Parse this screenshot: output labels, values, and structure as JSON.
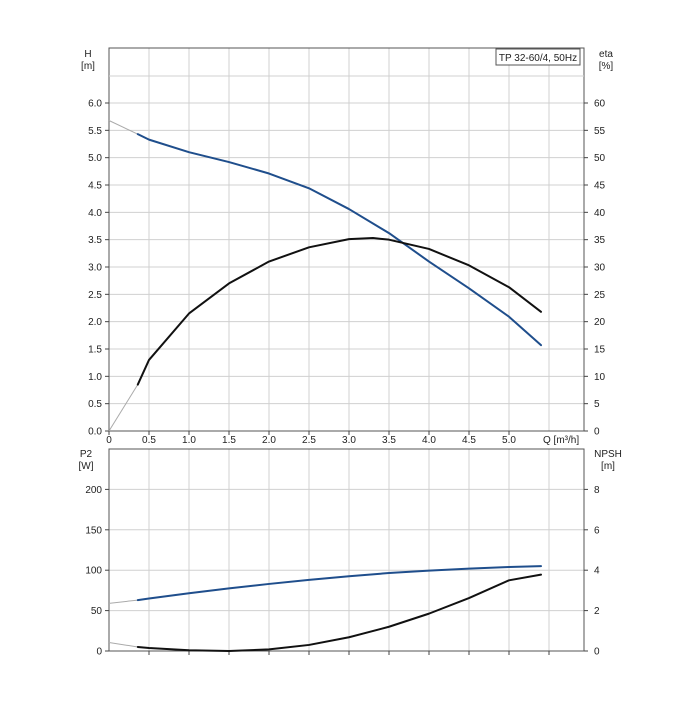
{
  "chart_data": [
    {
      "type": "line",
      "title": "TP 32-60/4, 50Hz",
      "xlabel": "Q [m³/h]",
      "x_ticks": [
        "0",
        "0.5",
        "1.0",
        "1.5",
        "2.0",
        "2.5",
        "3.0",
        "3.5",
        "4.0",
        "4.5",
        "5.0"
      ],
      "xlim": [
        0,
        5.5
      ],
      "ylabel_left": [
        "H",
        "[m]"
      ],
      "y_left_ticks": [
        "0.0",
        "0.5",
        "1.0",
        "1.5",
        "2.0",
        "2.5",
        "3.0",
        "3.5",
        "4.0",
        "4.5",
        "5.0",
        "5.5",
        "6.0"
      ],
      "ylim_left": [
        0,
        6.0
      ],
      "ylabel_right": [
        "eta",
        "[%]"
      ],
      "y_right_ticks": [
        "0",
        "5",
        "10",
        "15",
        "20",
        "25",
        "30",
        "35",
        "40",
        "45",
        "50",
        "55",
        "60"
      ],
      "ylim_right": [
        0,
        60
      ],
      "grid": true,
      "series": [
        {
          "axis": "left",
          "color": "#1f4e8c",
          "x": [
            0.0,
            0.36,
            0.5,
            1.0,
            1.5,
            2.0,
            2.5,
            3.0,
            3.5,
            4.0,
            4.5,
            5.0,
            5.4
          ],
          "y": [
            5.68,
            5.43,
            5.33,
            5.1,
            4.92,
            4.71,
            4.44,
            4.06,
            3.62,
            3.1,
            2.61,
            2.09,
            1.57
          ],
          "solid_from": 0.36
        },
        {
          "axis": "right",
          "color": "#111111",
          "x": [
            0.0,
            0.36,
            0.5,
            1.0,
            1.5,
            2.0,
            2.5,
            3.0,
            3.3,
            3.5,
            4.0,
            4.5,
            5.0,
            5.4
          ],
          "y": [
            0,
            8.5,
            13,
            21.5,
            27,
            31,
            33.6,
            35.1,
            35.3,
            35.0,
            33.3,
            30.3,
            26.3,
            21.8
          ],
          "solid_from": 0.36
        }
      ]
    },
    {
      "type": "line",
      "ylabel_left": [
        "P2",
        "[W]"
      ],
      "y_left_ticks": [
        "0",
        "50",
        "100",
        "150",
        "200"
      ],
      "ylim_left": [
        0,
        250
      ],
      "ylabel_right": [
        "NPSH",
        "[m]"
      ],
      "y_right_ticks": [
        "0",
        "2",
        "4",
        "6",
        "8"
      ],
      "ylim_right": [
        0,
        10
      ],
      "xlim": [
        0,
        5.5
      ],
      "grid": true,
      "series": [
        {
          "axis": "left",
          "color": "#1f4e8c",
          "x": [
            0.0,
            0.36,
            0.5,
            1.0,
            1.5,
            2.0,
            2.5,
            3.0,
            3.5,
            4.0,
            4.5,
            5.0,
            5.4
          ],
          "y": [
            59,
            63,
            65,
            71.5,
            77.5,
            83,
            88,
            92.5,
            96.5,
            99.5,
            102,
            104,
            105
          ],
          "solid_from": 0.36
        },
        {
          "axis": "right",
          "color": "#111111",
          "x": [
            0.0,
            0.36,
            0.5,
            1.0,
            1.5,
            2.0,
            2.5,
            3.0,
            3.5,
            4.0,
            4.5,
            5.0,
            5.4
          ],
          "y": [
            0.42,
            0.2,
            0.15,
            0.04,
            0.0,
            0.08,
            0.3,
            0.68,
            1.2,
            1.85,
            2.62,
            3.5,
            3.78
          ],
          "solid_from": 0.36
        }
      ]
    }
  ]
}
